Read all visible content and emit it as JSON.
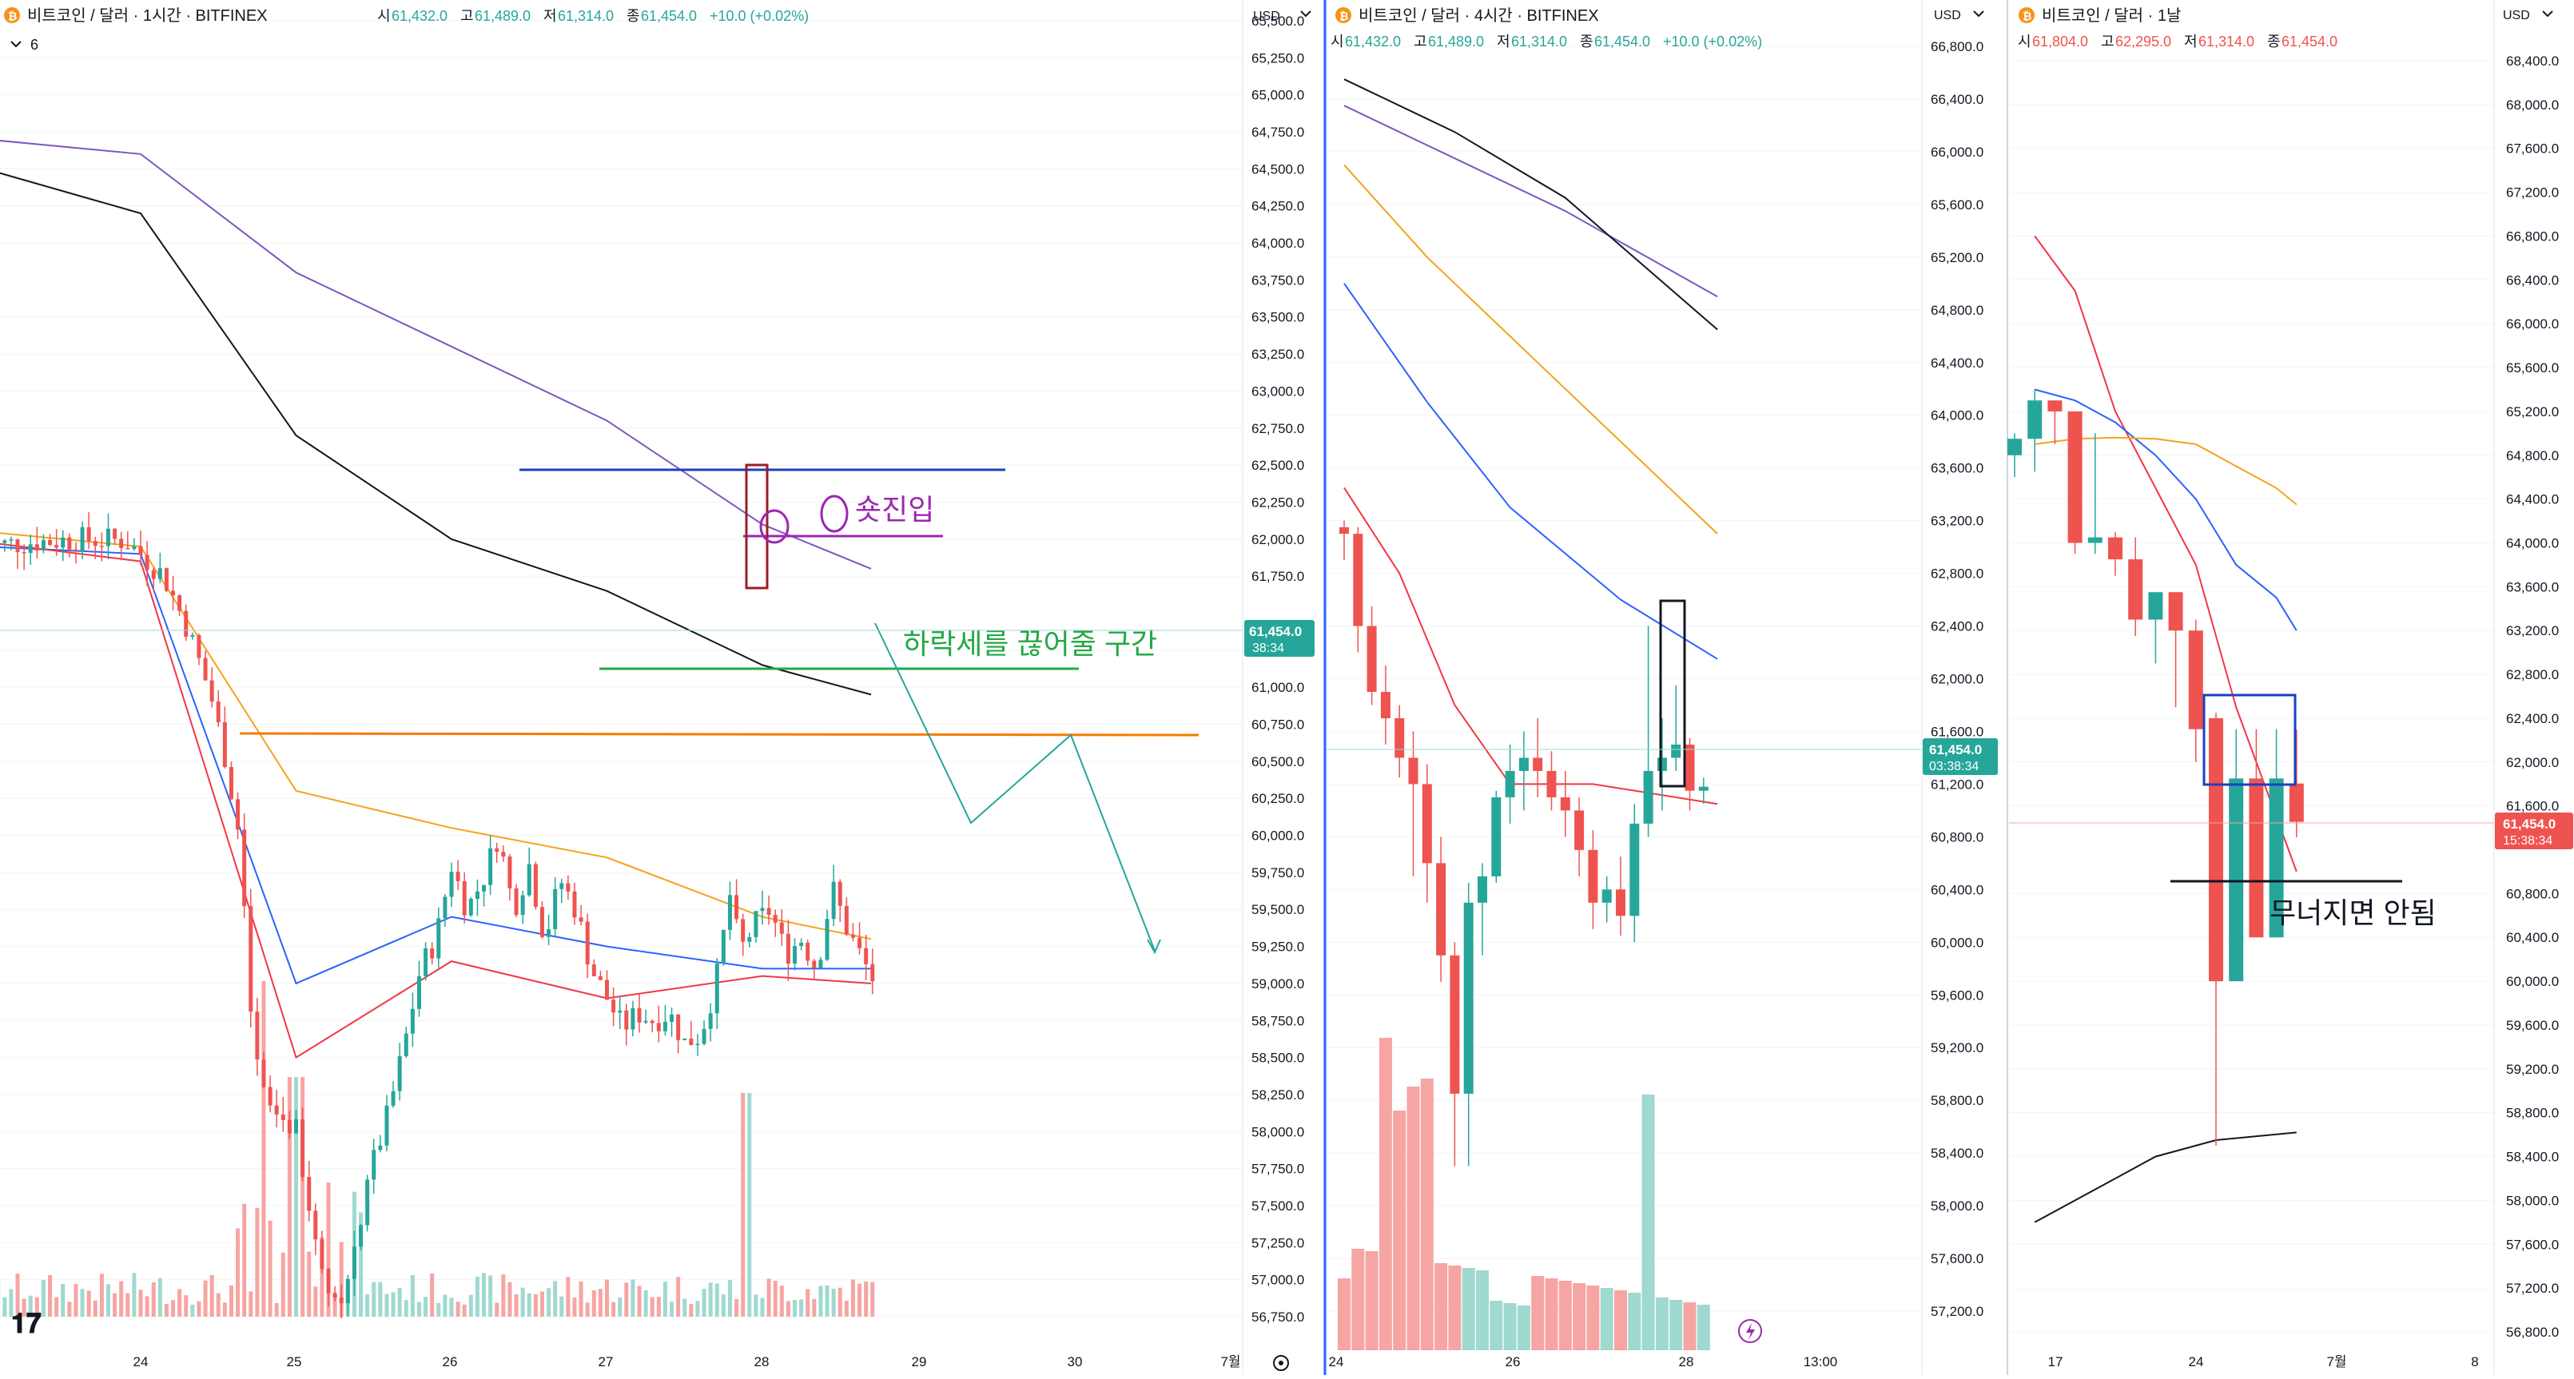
{
  "panels": [
    {
      "id": "p1",
      "header": {
        "symbol": "비트코인 / 달러 · 1시간 · BITFINEX",
        "ohlc": [
          {
            "k": "시",
            "v": "61,432.0"
          },
          {
            "k": "고",
            "v": "61,489.0"
          },
          {
            "k": "저",
            "v": "61,314.0"
          },
          {
            "k": "종",
            "v": "61,454.0"
          }
        ],
        "change": "+10.0 (+0.02%)",
        "indicator_count": "6"
      },
      "currency": "USD",
      "y_ticks": [
        "65,500.0",
        "65,250.0",
        "65,000.0",
        "64,750.0",
        "64,500.0",
        "64,250.0",
        "64,000.0",
        "63,750.0",
        "63,500.0",
        "63,250.0",
        "63,000.0",
        "62,750.0",
        "62,500.0",
        "62,250.0",
        "62,000.0",
        "61,750.0",
        "61,250.0",
        "61,000.0",
        "60,750.0",
        "60,500.0",
        "60,250.0",
        "60,000.0",
        "59,750.0",
        "59,500.0",
        "59,250.0",
        "59,000.0",
        "58,750.0",
        "58,500.0",
        "58,250.0",
        "58,000.0",
        "57,750.0",
        "57,500.0",
        "57,250.0",
        "57,000.0",
        "56,750.0"
      ],
      "x_ticks": [
        "24",
        "25",
        "26",
        "27",
        "28",
        "29",
        "30",
        "7월"
      ],
      "price_label": {
        "value": "61,454.0",
        "timer": "38:34"
      },
      "annotations": {
        "entry": "숏진입",
        "zone": "하락세를 끊어줄 구간"
      }
    },
    {
      "id": "p2",
      "header": {
        "symbol": "비트코인 / 달러 · 4시간 · BITFINEX",
        "ohlc": [
          {
            "k": "시",
            "v": "61,432.0"
          },
          {
            "k": "고",
            "v": "61,489.0"
          },
          {
            "k": "저",
            "v": "61,314.0"
          },
          {
            "k": "종",
            "v": "61,454.0"
          }
        ],
        "change": "+10.0 (+0.02%)"
      },
      "currency": "USD",
      "y_ticks": [
        "66,800.0",
        "66,400.0",
        "66,000.0",
        "65,600.0",
        "65,200.0",
        "64,800.0",
        "64,400.0",
        "64,000.0",
        "63,600.0",
        "63,200.0",
        "62,800.0",
        "62,400.0",
        "62,000.0",
        "61,600.0",
        "61,200.0",
        "60,800.0",
        "60,400.0",
        "60,000.0",
        "59,600.0",
        "59,200.0",
        "58,800.0",
        "58,400.0",
        "58,000.0",
        "57,600.0",
        "57,200.0"
      ],
      "x_ticks": [
        "24",
        "26",
        "28",
        "13:00"
      ],
      "price_label": {
        "value": "61,454.0",
        "timer": "03:38:34"
      }
    },
    {
      "id": "p3",
      "header": {
        "symbol": "비트코인 / 달러 · 1날",
        "ohlc": [
          {
            "k": "시",
            "v": "61,804.0"
          },
          {
            "k": "고",
            "v": "62,295.0"
          },
          {
            "k": "저",
            "v": "61,314.0"
          },
          {
            "k": "종",
            "v": "61,454.0"
          }
        ],
        "change": ""
      },
      "currency": "USD",
      "y_ticks": [
        "68,400.0",
        "68,000.0",
        "67,600.0",
        "67,200.0",
        "66,800.0",
        "66,400.0",
        "66,000.0",
        "65,600.0",
        "65,200.0",
        "64,800.0",
        "64,400.0",
        "64,000.0",
        "63,600.0",
        "63,200.0",
        "62,800.0",
        "62,400.0",
        "62,000.0",
        "61,600.0",
        "60,800.0",
        "60,400.0",
        "60,000.0",
        "59,600.0",
        "59,200.0",
        "58,800.0",
        "58,400.0",
        "58,000.0",
        "57,600.0",
        "57,200.0",
        "56,800.0"
      ],
      "x_ticks": [
        "17",
        "24",
        "7월",
        "8"
      ],
      "price_label": {
        "value": "61,454.0",
        "timer": "15:38:34"
      },
      "annotations": {
        "warning": "무너지면 안됨"
      }
    }
  ],
  "colors": {
    "up": "#26a69a",
    "down": "#ef5350",
    "volUp": "#9fd9d0",
    "volDown": "#f6a5a3",
    "ma_red": "#f23645",
    "ma_blue": "#2962ff",
    "ma_orange": "#f7a21b",
    "ma_black": "#131722",
    "ma_purple": "#7e57c2"
  },
  "chart_data": [
    {
      "type": "candlestick",
      "panel": "p1",
      "title": "비트코인 / 달러 · 1시간 · BITFINEX",
      "ylim": [
        56600,
        65650
      ],
      "x_start": "23.3",
      "x_end": "30.9",
      "close_series": [
        [
          23.0,
          61950
        ],
        [
          23.3,
          61980
        ],
        [
          23.6,
          62000
        ],
        [
          23.9,
          61990
        ],
        [
          24.0,
          61900
        ],
        [
          24.15,
          61750
        ],
        [
          24.3,
          61400
        ],
        [
          24.45,
          60950
        ],
        [
          24.55,
          60500
        ],
        [
          24.65,
          59900
        ],
        [
          24.72,
          58600
        ],
        [
          24.8,
          58200
        ],
        [
          24.9,
          58100
        ],
        [
          25.0,
          58000
        ],
        [
          25.1,
          57400
        ],
        [
          25.2,
          57000
        ],
        [
          25.3,
          56900
        ],
        [
          25.4,
          57300
        ],
        [
          25.5,
          57800
        ],
        [
          25.6,
          58150
        ],
        [
          25.7,
          58600
        ],
        [
          25.8,
          59100
        ],
        [
          25.9,
          59300
        ],
        [
          26.0,
          59800
        ],
        [
          26.1,
          59500
        ],
        [
          26.2,
          59700
        ],
        [
          26.3,
          60000
        ],
        [
          26.4,
          59500
        ],
        [
          26.5,
          59800
        ],
        [
          26.6,
          59300
        ],
        [
          26.7,
          59700
        ],
        [
          26.8,
          59500
        ],
        [
          26.9,
          59100
        ],
        [
          27.0,
          58900
        ],
        [
          27.1,
          58700
        ],
        [
          27.2,
          58800
        ],
        [
          27.3,
          58750
        ],
        [
          27.4,
          58800
        ],
        [
          27.5,
          58600
        ],
        [
          27.6,
          58650
        ],
        [
          27.7,
          59000
        ],
        [
          27.8,
          59650
        ],
        [
          27.85,
          59200
        ],
        [
          27.95,
          59400
        ],
        [
          28.05,
          59500
        ],
        [
          28.15,
          59200
        ],
        [
          28.25,
          59300
        ],
        [
          28.35,
          59100
        ],
        [
          28.45,
          59650
        ],
        [
          28.55,
          59350
        ],
        [
          28.65,
          59150
        ],
        [
          28.75,
          58950
        ]
      ],
      "volume_peaks": [
        [
          24.8,
          "high"
        ],
        [
          25.0,
          "high"
        ],
        [
          27.9,
          "high"
        ]
      ],
      "moving_averages": {
        "purple": [
          [
            23.0,
            64700
          ],
          [
            24.0,
            64600
          ],
          [
            25.0,
            63800
          ],
          [
            26.0,
            63300
          ],
          [
            27.0,
            62800
          ],
          [
            28.0,
            62100
          ],
          [
            28.7,
            61800
          ]
        ],
        "black": [
          [
            23.0,
            64500
          ],
          [
            24.0,
            64200
          ],
          [
            25.0,
            62700
          ],
          [
            26.0,
            62000
          ],
          [
            27.0,
            61650
          ],
          [
            28.0,
            61150
          ],
          [
            28.7,
            60950
          ]
        ],
        "orange": [
          [
            23.0,
            62050
          ],
          [
            24.0,
            61950
          ],
          [
            25.0,
            60300
          ],
          [
            26.0,
            60050
          ],
          [
            27.0,
            59850
          ],
          [
            28.0,
            59450
          ],
          [
            28.7,
            59300
          ]
        ],
        "blue": [
          [
            23.0,
            61950
          ],
          [
            24.0,
            61900
          ],
          [
            25.0,
            59000
          ],
          [
            26.0,
            59450
          ],
          [
            27.0,
            59250
          ],
          [
            28.0,
            59100
          ],
          [
            28.7,
            59100
          ]
        ],
        "red": [
          [
            23.0,
            61980
          ],
          [
            24.0,
            61850
          ],
          [
            25.0,
            58500
          ],
          [
            26.0,
            59150
          ],
          [
            27.0,
            58900
          ],
          [
            28.0,
            59050
          ],
          [
            28.7,
            59000
          ]
        ]
      },
      "levels": {
        "resistance": 62580,
        "support": 60750
      }
    },
    {
      "type": "candlestick",
      "panel": "p2",
      "title": "비트코인 / 달러 · 4시간 · BITFINEX",
      "ylim": [
        57000,
        67000
      ],
      "candles": [
        [
          63150,
          63200,
          62900,
          63100
        ],
        [
          63100,
          63150,
          62200,
          62400
        ],
        [
          62400,
          62550,
          61800,
          61900
        ],
        [
          61900,
          62100,
          61500,
          61700
        ],
        [
          61700,
          61800,
          61250,
          61400
        ],
        [
          61400,
          61600,
          60500,
          61200
        ],
        [
          61200,
          61350,
          60300,
          60600
        ],
        [
          60600,
          60800,
          59700,
          59900
        ],
        [
          59900,
          60000,
          58300,
          58850
        ],
        [
          58850,
          60450,
          58300,
          60300
        ],
        [
          60300,
          60600,
          59900,
          60500
        ],
        [
          60500,
          61150,
          60450,
          61100
        ],
        [
          61100,
          61500,
          60900,
          61300
        ],
        [
          61300,
          61600,
          61000,
          61400
        ],
        [
          61400,
          61700,
          61100,
          61300
        ],
        [
          61300,
          61450,
          61000,
          61100
        ],
        [
          61100,
          61300,
          60800,
          61000
        ],
        [
          61000,
          61100,
          60500,
          60700
        ],
        [
          60700,
          60850,
          60100,
          60300
        ],
        [
          60300,
          60500,
          60150,
          60400
        ],
        [
          60400,
          60650,
          60050,
          60200
        ],
        [
          60200,
          61050,
          60000,
          60900
        ],
        [
          60900,
          62400,
          60800,
          61300
        ],
        [
          61300,
          61700,
          61000,
          61400
        ],
        [
          61400,
          61950,
          61300,
          61500
        ],
        [
          61500,
          61550,
          61000,
          61150
        ],
        [
          61150,
          61250,
          61050,
          61180
        ]
      ],
      "volumes": [
        "mid",
        "mid",
        "mid",
        "high",
        "high",
        "high",
        "high",
        "mid",
        "mid",
        "mid",
        "mid",
        "low",
        "low",
        "low",
        "low",
        "low",
        "low",
        "low",
        "low",
        "low",
        "low",
        "low",
        "high",
        "low",
        "low",
        "low",
        "low"
      ]
    },
    {
      "type": "candlestick",
      "panel": "p3",
      "title": "비트코인 / 달러 · 1날",
      "ylim": [
        56700,
        68600
      ],
      "candles": [
        [
          64800,
          65000,
          64600,
          64950
        ],
        [
          64950,
          65400,
          64650,
          65300
        ],
        [
          65300,
          65300,
          64900,
          65200
        ],
        [
          65200,
          65200,
          63900,
          64000
        ],
        [
          64000,
          65000,
          63900,
          64050
        ],
        [
          64050,
          64100,
          63700,
          63850
        ],
        [
          63850,
          64050,
          63150,
          63300
        ],
        [
          63300,
          63500,
          62900,
          63550
        ],
        [
          63550,
          63550,
          62500,
          63200
        ],
        [
          63200,
          63300,
          62000,
          62300
        ],
        [
          62400,
          62450,
          58500,
          60000
        ],
        [
          60000,
          62300,
          60000,
          61850
        ],
        [
          61850,
          62300,
          60400,
          60400
        ],
        [
          60400,
          62300,
          60400,
          61850
        ],
        [
          61804,
          62295,
          61314,
          61454
        ]
      ],
      "moving_averages": {
        "red": [
          [
            1,
            66800
          ],
          [
            3,
            66300
          ],
          [
            5,
            65200
          ],
          [
            7,
            64500
          ],
          [
            9,
            63800
          ],
          [
            11,
            62500
          ],
          [
            13,
            61500
          ],
          [
            14,
            61000
          ]
        ],
        "blue": [
          [
            1,
            65400
          ],
          [
            3,
            65300
          ],
          [
            5,
            65100
          ],
          [
            7,
            64800
          ],
          [
            9,
            64400
          ],
          [
            11,
            63800
          ],
          [
            13,
            63500
          ],
          [
            14,
            63200
          ]
        ],
        "orange": [
          [
            1,
            64900
          ],
          [
            3,
            64950
          ],
          [
            5,
            64960
          ],
          [
            7,
            64950
          ],
          [
            9,
            64900
          ],
          [
            11,
            64700
          ],
          [
            13,
            64500
          ],
          [
            14,
            64350
          ]
        ],
        "black": [
          [
            1,
            57800
          ],
          [
            4,
            58100
          ],
          [
            7,
            58400
          ],
          [
            10,
            58550
          ],
          [
            14,
            58620
          ]
        ]
      },
      "levels": {
        "critical": 60450
      }
    }
  ]
}
